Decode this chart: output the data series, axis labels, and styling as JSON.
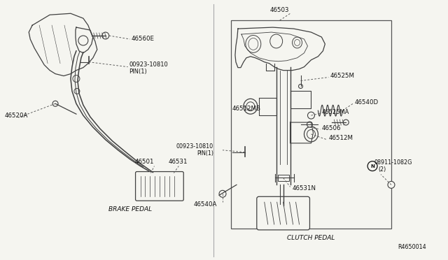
{
  "bg_color": "#f5f5f0",
  "line_color": "#404040",
  "text_color": "#111111",
  "label_color": "#222222",
  "divider_color": "#999999",
  "brake_label": "BRAKE PEDAL",
  "clutch_label": "CLUTCH PEDAL",
  "ref_label": "R4650014",
  "font_size_label": 6.0,
  "font_size_part": 6.2,
  "font_size_ref": 5.5
}
